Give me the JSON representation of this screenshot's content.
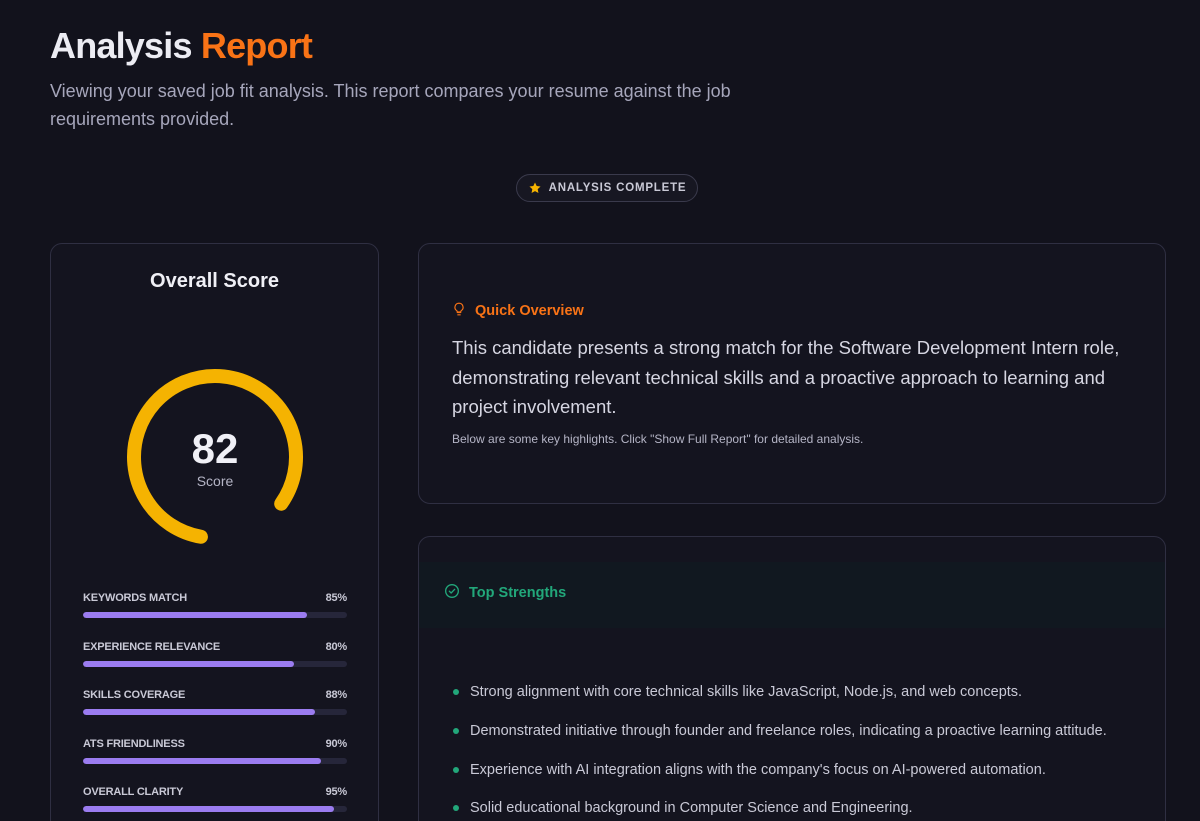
{
  "header": {
    "title_word1": "Analysis",
    "title_word2": "Report",
    "subtitle": "Viewing your saved job fit analysis. This report compares your resume against the job requirements provided."
  },
  "status_badge": {
    "label": "ANALYSIS COMPLETE",
    "icon": "star-icon",
    "icon_color": "#f5b301"
  },
  "score_card": {
    "title": "Overall Score",
    "score": 82,
    "score_max": 100,
    "score_label": "Score",
    "gauge_color": "#f5b301",
    "metrics": [
      {
        "label": "KEYWORDS MATCH",
        "value_text": "85%",
        "value": 85
      },
      {
        "label": "EXPERIENCE RELEVANCE",
        "value_text": "80%",
        "value": 80
      },
      {
        "label": "SKILLS COVERAGE",
        "value_text": "88%",
        "value": 88
      },
      {
        "label": "ATS FRIENDLINESS",
        "value_text": "90%",
        "value": 90
      },
      {
        "label": "OVERALL CLARITY",
        "value_text": "95%",
        "value": 95
      }
    ],
    "bar_color": "#9b7cf0"
  },
  "overview": {
    "heading": "Quick Overview",
    "icon": "lightbulb-icon",
    "accent": "#f97316",
    "summary": "This candidate presents a strong match for the Software Development Intern role, demonstrating relevant technical skills and a proactive approach to learning and project involvement.",
    "note": "Below are some key highlights. Click \"Show Full Report\" for detailed analysis."
  },
  "strengths": {
    "heading": "Top Strengths",
    "icon": "check-circle-icon",
    "accent": "#22a77a",
    "items": [
      "Strong alignment with core technical skills like JavaScript, Node.js, and web concepts.",
      "Demonstrated initiative through founder and freelance roles, indicating a proactive learning attitude.",
      "Experience with AI integration aligns with the company's focus on AI-powered automation.",
      "Solid educational background in Computer Science and Engineering."
    ]
  }
}
